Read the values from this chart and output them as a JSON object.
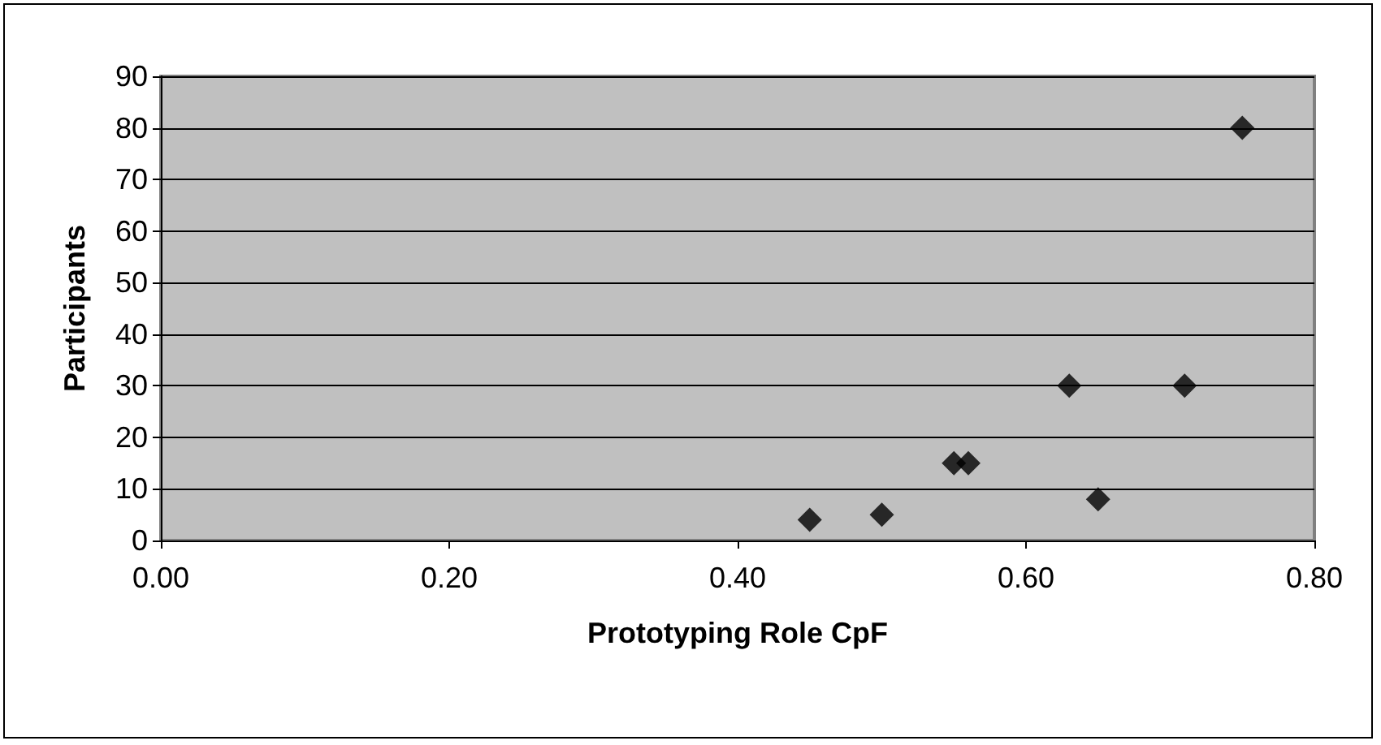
{
  "chart_data": {
    "type": "scatter",
    "xlabel": "Prototyping Role CpF",
    "ylabel": "Participants",
    "x": [
      0.45,
      0.5,
      0.55,
      0.56,
      0.63,
      0.65,
      0.71,
      0.75
    ],
    "values": [
      4,
      5,
      15,
      15,
      30,
      8,
      30,
      80
    ],
    "color": "#000000",
    "marker": "diamond",
    "xlim": [
      0,
      0.8
    ],
    "xticks": [
      {
        "value": 0,
        "label": "0.00"
      },
      {
        "value": 0.2,
        "label": "0.20"
      },
      {
        "value": 0.4,
        "label": "0.40"
      },
      {
        "value": 0.6,
        "label": "0.60"
      },
      {
        "value": 0.8,
        "label": "0.80"
      }
    ],
    "ylim": [
      0,
      90
    ],
    "yticks": [
      0,
      10,
      20,
      30,
      40,
      50,
      60,
      70,
      80,
      90
    ],
    "grid": "y"
  }
}
